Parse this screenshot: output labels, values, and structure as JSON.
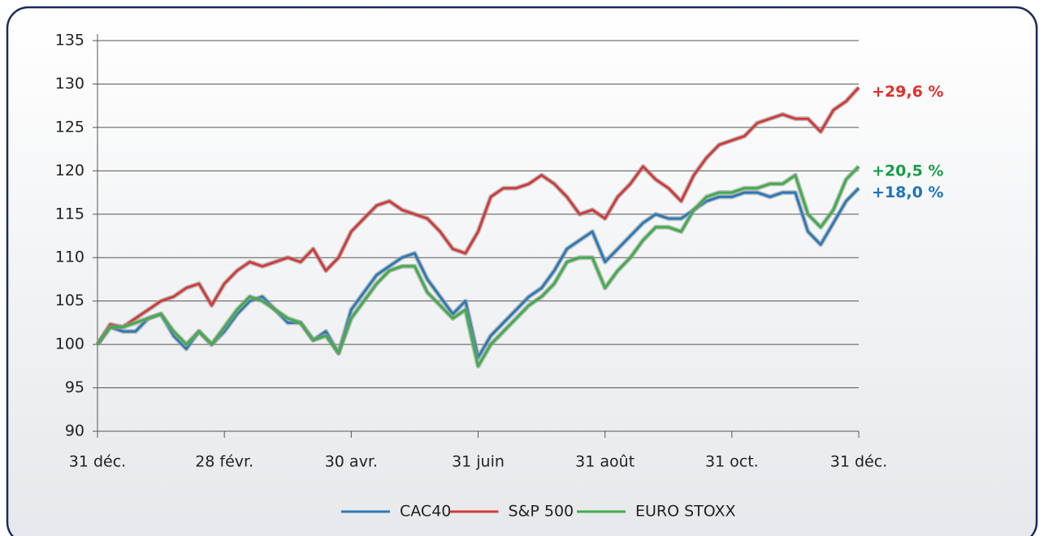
{
  "chart_data": {
    "type": "line",
    "x": [
      0,
      1,
      2,
      3,
      4,
      5,
      6,
      7,
      8,
      9,
      10,
      11,
      12,
      13,
      14,
      15,
      16,
      17,
      18,
      19,
      20,
      21,
      22,
      23,
      24,
      25,
      26,
      27,
      28,
      29,
      30,
      31,
      32,
      33,
      34,
      35,
      36,
      37,
      38,
      39,
      40,
      41,
      42,
      43,
      44,
      45,
      46,
      47,
      48,
      49,
      50,
      51,
      52,
      53,
      54,
      55,
      56,
      57,
      58,
      59,
      60
    ],
    "xlim": [
      0,
      60
    ],
    "xticks": [
      {
        "value": 0,
        "label": "31 déc."
      },
      {
        "value": 10,
        "label": "28 févr."
      },
      {
        "value": 20,
        "label": "30 avr."
      },
      {
        "value": 30,
        "label": "31 juin"
      },
      {
        "value": 40,
        "label": "31 août"
      },
      {
        "value": 50,
        "label": "31 oct."
      },
      {
        "value": 60,
        "label": "31 déc."
      }
    ],
    "ylim": [
      90,
      135
    ],
    "yticks": [
      90,
      95,
      100,
      105,
      110,
      115,
      120,
      125,
      130,
      135
    ],
    "grid": true,
    "legend": "bottom",
    "series": [
      {
        "name": "CAC40",
        "color": "#2a7ab8",
        "end_label": "+18,0 %",
        "label_color": "#1f74b5",
        "values": [
          100,
          102,
          101.5,
          101.5,
          103,
          103.5,
          101,
          99.5,
          101.5,
          100,
          101.5,
          103.5,
          105,
          105.5,
          104,
          102.5,
          102.5,
          100.5,
          101.5,
          99,
          104,
          106,
          108,
          109,
          110,
          110.5,
          107.5,
          105.5,
          103.5,
          105,
          98.5,
          101,
          102.5,
          104,
          105.5,
          106.5,
          108.5,
          111,
          112,
          113,
          109.5,
          111,
          112.5,
          114,
          115,
          114.5,
          114.5,
          115.5,
          116.5,
          117,
          117,
          117.5,
          117.5,
          117,
          117.5,
          117.5,
          113,
          111.5,
          114,
          116.5,
          118.0
        ]
      },
      {
        "name": "S&P 500",
        "color": "#d23a3a",
        "end_label": "+29,6 %",
        "label_color": "#e0302c",
        "values": [
          100,
          102.3,
          102,
          103,
          104,
          105,
          105.5,
          106.5,
          107,
          104.5,
          107,
          108.5,
          109.5,
          109,
          109.5,
          110,
          109.5,
          111,
          108.5,
          110,
          113,
          114.5,
          116,
          116.5,
          115.5,
          115,
          114.5,
          113,
          111,
          110.5,
          113,
          117,
          118,
          118,
          118.5,
          119.5,
          118.5,
          117,
          115,
          115.5,
          114.5,
          117,
          118.5,
          120.5,
          119,
          118,
          116.5,
          119.5,
          121.5,
          123,
          123.5,
          124,
          125.5,
          126,
          126.5,
          126,
          126,
          124.5,
          127,
          128,
          129.6
        ]
      },
      {
        "name": "EURO STOXX",
        "color": "#3fae49",
        "end_label": "+20,5 %",
        "label_color": "#1a9b4a",
        "values": [
          100,
          102,
          102,
          102.5,
          103,
          103.5,
          101.5,
          100,
          101.5,
          100,
          102,
          104,
          105.5,
          105,
          104,
          103,
          102.5,
          100.5,
          101,
          99,
          103,
          105,
          107,
          108.5,
          109,
          109,
          106,
          104.5,
          103,
          104,
          97.5,
          100,
          101.5,
          103,
          104.5,
          105.5,
          107,
          109.5,
          110,
          110,
          106.5,
          108.5,
          110,
          112,
          113.5,
          113.5,
          113,
          115.5,
          117,
          117.5,
          117.5,
          118,
          118,
          118.5,
          118.5,
          119.5,
          115,
          113.5,
          115.5,
          119,
          120.5
        ]
      }
    ]
  }
}
